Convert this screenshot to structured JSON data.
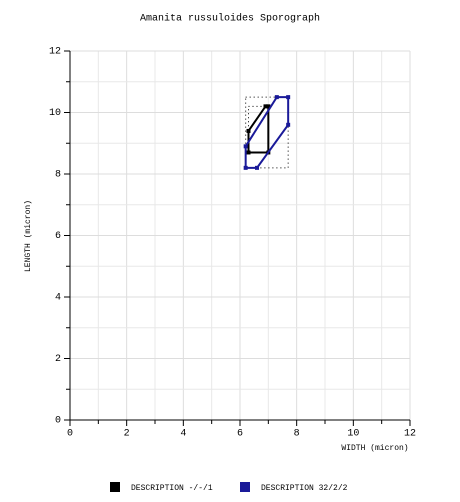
{
  "chart_data": {
    "type": "polygon",
    "title": "Amanita   russuloides Sporograph",
    "x_label": "WIDTH (micron)",
    "y_label": "LENGTH (micron)",
    "xlim": [
      0,
      12
    ],
    "xticks": [
      0,
      2,
      4,
      6,
      8,
      10,
      12
    ],
    "ylim": [
      0,
      12
    ],
    "yticks": [
      0,
      2,
      4,
      6,
      8,
      10,
      12
    ],
    "grid": true,
    "series": [
      {
        "name": "DESCRIPTION -/-/1",
        "color": "#000000",
        "x": [
          6.3,
          6.9,
          7.0,
          7.0,
          6.3
        ],
        "y": [
          9.4,
          10.2,
          10.2,
          8.7,
          8.7
        ]
      },
      {
        "name": "DESCRIPTION 32/2/2",
        "color": "#1a1a99",
        "x": [
          6.2,
          6.2,
          6.6,
          7.7,
          7.7,
          7.3
        ],
        "y": [
          8.9,
          8.2,
          8.2,
          9.6,
          10.5,
          10.5
        ]
      }
    ]
  }
}
